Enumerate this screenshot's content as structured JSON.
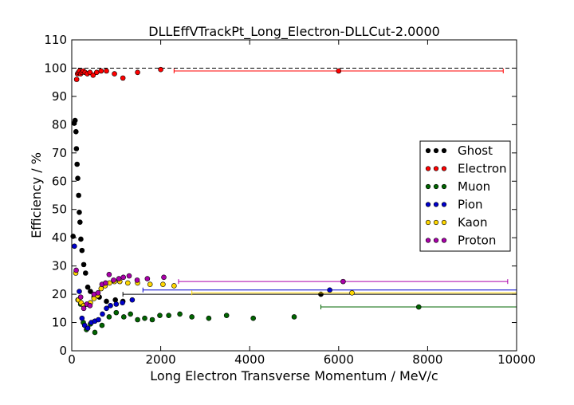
{
  "chart_data": {
    "type": "scatter",
    "title": "DLLEffVTrackPt_Long_Electron-DLLCut-2.0000",
    "xlabel": "Long Electron Transverse Momentum / MeV/c",
    "ylabel": "Efficiency / %",
    "xlim": [
      0,
      10000
    ],
    "ylim": [
      0,
      110
    ],
    "x_ticks": [
      "0",
      "2000",
      "4000",
      "6000",
      "8000",
      "10000"
    ],
    "y_ticks": [
      "0",
      "10",
      "20",
      "30",
      "40",
      "50",
      "60",
      "70",
      "80",
      "90",
      "100",
      "110"
    ],
    "reference_line": {
      "y": 100,
      "style": "dashed"
    },
    "legend_position": "center-right",
    "series": [
      {
        "name": "Ghost",
        "color": "#000000",
        "points": [
          {
            "x": 30,
            "y": 40.5
          },
          {
            "x": 55,
            "y": 80.5
          },
          {
            "x": 75,
            "y": 81.5
          },
          {
            "x": 95,
            "y": 77.5
          },
          {
            "x": 105,
            "y": 71.5
          },
          {
            "x": 120,
            "y": 66
          },
          {
            "x": 135,
            "y": 61
          },
          {
            "x": 155,
            "y": 55
          },
          {
            "x": 170,
            "y": 49
          },
          {
            "x": 185,
            "y": 45.5
          },
          {
            "x": 205,
            "y": 39.5
          },
          {
            "x": 230,
            "y": 35.5
          },
          {
            "x": 270,
            "y": 30.5
          },
          {
            "x": 310,
            "y": 27.5
          },
          {
            "x": 360,
            "y": 22.5
          },
          {
            "x": 420,
            "y": 21
          },
          {
            "x": 500,
            "y": 19
          },
          {
            "x": 620,
            "y": 19
          },
          {
            "x": 780,
            "y": 17.5
          },
          {
            "x": 980,
            "y": 18
          },
          {
            "x": 1150,
            "y": 17.5
          },
          {
            "x": 5600,
            "y": 20
          }
        ],
        "wide_bin": {
          "x": 5600,
          "xmin": 1150,
          "xmax": 10000,
          "y": 20
        }
      },
      {
        "name": "Electron",
        "color": "#ff0000",
        "points": [
          {
            "x": 110,
            "y": 96
          },
          {
            "x": 130,
            "y": 98
          },
          {
            "x": 150,
            "y": 98.5
          },
          {
            "x": 175,
            "y": 99
          },
          {
            "x": 200,
            "y": 98
          },
          {
            "x": 230,
            "y": 98.5
          },
          {
            "x": 260,
            "y": 99
          },
          {
            "x": 300,
            "y": 98.5
          },
          {
            "x": 350,
            "y": 98
          },
          {
            "x": 410,
            "y": 98.5
          },
          {
            "x": 480,
            "y": 97.5
          },
          {
            "x": 560,
            "y": 98.5
          },
          {
            "x": 660,
            "y": 99
          },
          {
            "x": 780,
            "y": 99
          },
          {
            "x": 960,
            "y": 98
          },
          {
            "x": 1150,
            "y": 96.5
          },
          {
            "x": 1480,
            "y": 98.5
          },
          {
            "x": 2000,
            "y": 99.5
          },
          {
            "x": 6000,
            "y": 99
          }
        ],
        "wide_bin": {
          "x": 6000,
          "xmin": 2300,
          "xmax": 9700,
          "y": 99
        }
      },
      {
        "name": "Muon",
        "color": "#006400",
        "points": [
          {
            "x": 140,
            "y": 18
          },
          {
            "x": 200,
            "y": 16.5
          },
          {
            "x": 260,
            "y": 10
          },
          {
            "x": 330,
            "y": 7.5
          },
          {
            "x": 420,
            "y": 9.5
          },
          {
            "x": 520,
            "y": 6.5
          },
          {
            "x": 680,
            "y": 9
          },
          {
            "x": 840,
            "y": 12
          },
          {
            "x": 1000,
            "y": 13.5
          },
          {
            "x": 1170,
            "y": 12
          },
          {
            "x": 1320,
            "y": 13
          },
          {
            "x": 1480,
            "y": 11
          },
          {
            "x": 1640,
            "y": 11.5
          },
          {
            "x": 1810,
            "y": 11
          },
          {
            "x": 1980,
            "y": 12.5
          },
          {
            "x": 2180,
            "y": 12.5
          },
          {
            "x": 2430,
            "y": 13
          },
          {
            "x": 2700,
            "y": 12
          },
          {
            "x": 3080,
            "y": 11.5
          },
          {
            "x": 3480,
            "y": 12.5
          },
          {
            "x": 4080,
            "y": 11.5
          },
          {
            "x": 5000,
            "y": 12
          },
          {
            "x": 7800,
            "y": 15.5
          }
        ],
        "wide_bin": {
          "x": 7800,
          "xmin": 5600,
          "xmax": 10000,
          "y": 15.5
        }
      },
      {
        "name": "Pion",
        "color": "#0000cd",
        "points": [
          {
            "x": 60,
            "y": 37
          },
          {
            "x": 170,
            "y": 21
          },
          {
            "x": 230,
            "y": 11.5
          },
          {
            "x": 290,
            "y": 9
          },
          {
            "x": 360,
            "y": 8
          },
          {
            "x": 440,
            "y": 10
          },
          {
            "x": 520,
            "y": 10.5
          },
          {
            "x": 600,
            "y": 11
          },
          {
            "x": 690,
            "y": 13
          },
          {
            "x": 780,
            "y": 15
          },
          {
            "x": 870,
            "y": 16
          },
          {
            "x": 1000,
            "y": 16.5
          },
          {
            "x": 1140,
            "y": 17
          },
          {
            "x": 1360,
            "y": 18
          },
          {
            "x": 5800,
            "y": 21.5
          }
        ],
        "wide_bin": {
          "x": 5800,
          "xmin": 1600,
          "xmax": 10000,
          "y": 21.5
        }
      },
      {
        "name": "Kaon",
        "color": "#ffd700",
        "points": [
          {
            "x": 90,
            "y": 27.5
          },
          {
            "x": 150,
            "y": 18
          },
          {
            "x": 210,
            "y": 17
          },
          {
            "x": 270,
            "y": 16
          },
          {
            "x": 340,
            "y": 16.5
          },
          {
            "x": 420,
            "y": 17
          },
          {
            "x": 500,
            "y": 18.5
          },
          {
            "x": 580,
            "y": 19.5
          },
          {
            "x": 660,
            "y": 22
          },
          {
            "x": 750,
            "y": 23
          },
          {
            "x": 850,
            "y": 24
          },
          {
            "x": 960,
            "y": 24.5
          },
          {
            "x": 1080,
            "y": 24.5
          },
          {
            "x": 1260,
            "y": 24
          },
          {
            "x": 1480,
            "y": 24
          },
          {
            "x": 1760,
            "y": 23.5
          },
          {
            "x": 2050,
            "y": 23.5
          },
          {
            "x": 2300,
            "y": 23
          },
          {
            "x": 6300,
            "y": 20.5
          }
        ],
        "wide_bin": {
          "x": 6300,
          "xmin": 2700,
          "xmax": 10000,
          "y": 20.5
        }
      },
      {
        "name": "Proton",
        "color": "#aa00aa",
        "points": [
          {
            "x": 100,
            "y": 28.5
          },
          {
            "x": 200,
            "y": 19
          },
          {
            "x": 270,
            "y": 15
          },
          {
            "x": 340,
            "y": 16.5
          },
          {
            "x": 410,
            "y": 16
          },
          {
            "x": 500,
            "y": 20
          },
          {
            "x": 590,
            "y": 20.5
          },
          {
            "x": 680,
            "y": 23.5
          },
          {
            "x": 760,
            "y": 24
          },
          {
            "x": 840,
            "y": 27
          },
          {
            "x": 940,
            "y": 25
          },
          {
            "x": 1060,
            "y": 25.5
          },
          {
            "x": 1160,
            "y": 26
          },
          {
            "x": 1290,
            "y": 26.5
          },
          {
            "x": 1470,
            "y": 25
          },
          {
            "x": 1700,
            "y": 25.5
          },
          {
            "x": 2070,
            "y": 26
          },
          {
            "x": 6100,
            "y": 24.5
          }
        ],
        "wide_bin": {
          "x": 6100,
          "xmin": 2400,
          "xmax": 9800,
          "y": 24.5
        }
      }
    ]
  }
}
